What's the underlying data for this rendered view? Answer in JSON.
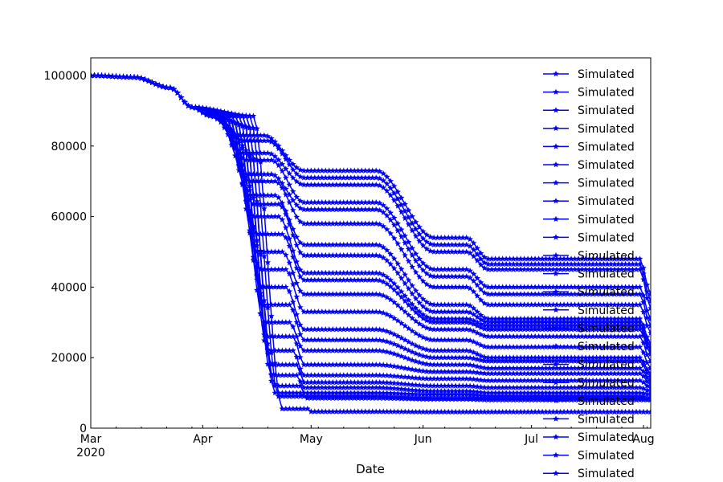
{
  "chart_data": {
    "type": "line",
    "title": "",
    "xlabel": "Date",
    "ylabel": "",
    "x_ticks": [
      {
        "date": "2020-03-01",
        "label": "Mar",
        "sublabel": "2020"
      },
      {
        "date": "2020-04-01",
        "label": "Apr",
        "sublabel": ""
      },
      {
        "date": "2020-05-01",
        "label": "May",
        "sublabel": ""
      },
      {
        "date": "2020-06-01",
        "label": "Jun",
        "sublabel": ""
      },
      {
        "date": "2020-07-01",
        "label": "Jul",
        "sublabel": ""
      },
      {
        "date": "2020-08-01",
        "label": "Aug",
        "sublabel": ""
      }
    ],
    "xlim": [
      "2020-03-01",
      "2020-08-03"
    ],
    "y_ticks": [
      0,
      20000,
      40000,
      60000,
      80000,
      100000
    ],
    "ylim": [
      0,
      105000
    ],
    "grid": false,
    "legend_position": "upper right",
    "series_color": "#0000ff",
    "marker": "star",
    "series": [
      {
        "name": "Simulated",
        "plateau": 83000,
        "drop_date": "2020-04-06",
        "y_may": 73000,
        "y_jun": 54000,
        "y_jul": 48000,
        "y_end": 38000
      },
      {
        "name": "Simulated",
        "plateau": 81500,
        "drop_date": "2020-04-07",
        "y_may": 71000,
        "y_jun": 52000,
        "y_jul": 46500,
        "y_end": 36000
      },
      {
        "name": "Simulated",
        "plateau": 78000,
        "drop_date": "2020-04-07",
        "y_may": 69000,
        "y_jun": 50000,
        "y_jul": 45000,
        "y_end": 34000
      },
      {
        "name": "Simulated",
        "plateau": 76000,
        "drop_date": "2020-04-08",
        "y_may": 64000,
        "y_jun": 45000,
        "y_jul": 40000,
        "y_end": 31000
      },
      {
        "name": "Simulated",
        "plateau": 72000,
        "drop_date": "2020-04-08",
        "y_may": 62000,
        "y_jun": 43000,
        "y_jul": 38000,
        "y_end": 29000
      },
      {
        "name": "Simulated",
        "plateau": 70000,
        "drop_date": "2020-04-09",
        "y_may": 58000,
        "y_jun": 40000,
        "y_jul": 35000,
        "y_end": 27000
      },
      {
        "name": "Simulated",
        "plateau": 66000,
        "drop_date": "2020-04-09",
        "y_may": 52000,
        "y_jun": 35000,
        "y_jul": 31000,
        "y_end": 24000
      },
      {
        "name": "Simulated",
        "plateau": 63500,
        "drop_date": "2020-04-10",
        "y_may": 49000,
        "y_jun": 33000,
        "y_jul": 30000,
        "y_end": 23000
      },
      {
        "name": "Simulated",
        "plateau": 60000,
        "drop_date": "2020-04-10",
        "y_may": 44000,
        "y_jun": 31000,
        "y_jul": 29000,
        "y_end": 22000
      },
      {
        "name": "Simulated",
        "plateau": 55000,
        "drop_date": "2020-04-11",
        "y_may": 42000,
        "y_jun": 30000,
        "y_jul": 28000,
        "y_end": 21000
      },
      {
        "name": "Simulated",
        "plateau": 50000,
        "drop_date": "2020-04-11",
        "y_may": 38000,
        "y_jun": 28000,
        "y_jul": 26000,
        "y_end": 19000
      },
      {
        "name": "Simulated",
        "plateau": 45000,
        "drop_date": "2020-04-12",
        "y_may": 33000,
        "y_jun": 25000,
        "y_jul": 23000,
        "y_end": 17000
      },
      {
        "name": "Simulated",
        "plateau": 40000,
        "drop_date": "2020-04-12",
        "y_may": 28000,
        "y_jun": 22000,
        "y_jul": 20000,
        "y_end": 15500
      },
      {
        "name": "Simulated",
        "plateau": 35000,
        "drop_date": "2020-04-13",
        "y_may": 25000,
        "y_jun": 20000,
        "y_jul": 19000,
        "y_end": 14500
      },
      {
        "name": "Simulated",
        "plateau": 30000,
        "drop_date": "2020-04-13",
        "y_may": 22000,
        "y_jun": 18000,
        "y_jul": 17000,
        "y_end": 13500
      },
      {
        "name": "Simulated",
        "plateau": 26000,
        "drop_date": "2020-04-14",
        "y_may": 18000,
        "y_jun": 16000,
        "y_jul": 15500,
        "y_end": 12500
      },
      {
        "name": "Simulated",
        "plateau": 22000,
        "drop_date": "2020-04-14",
        "y_may": 15000,
        "y_jun": 14000,
        "y_jul": 13500,
        "y_end": 11500
      },
      {
        "name": "Simulated",
        "plateau": 18000,
        "drop_date": "2020-04-15",
        "y_may": 13000,
        "y_jun": 12000,
        "y_jul": 11500,
        "y_end": 10500
      },
      {
        "name": "Simulated",
        "plateau": 15000,
        "drop_date": "2020-04-15",
        "y_may": 11500,
        "y_jun": 10500,
        "y_jul": 10000,
        "y_end": 9500
      },
      {
        "name": "Simulated",
        "plateau": 12000,
        "drop_date": "2020-04-16",
        "y_may": 10000,
        "y_jun": 9500,
        "y_jul": 9000,
        "y_end": 8500
      },
      {
        "name": "Simulated",
        "plateau": 10000,
        "drop_date": "2020-04-16",
        "y_may": 9000,
        "y_jun": 8500,
        "y_jul": 8500,
        "y_end": 8200
      },
      {
        "name": "Simulated",
        "plateau": 9000,
        "drop_date": "2020-04-17",
        "y_may": 8500,
        "y_jun": 8200,
        "y_jul": 8000,
        "y_end": 8000
      },
      {
        "name": "Simulated",
        "plateau": 5500,
        "drop_date": "2020-04-18",
        "y_may": 4700,
        "y_jun": 4600,
        "y_jul": 4600,
        "y_end": 4600
      }
    ]
  }
}
